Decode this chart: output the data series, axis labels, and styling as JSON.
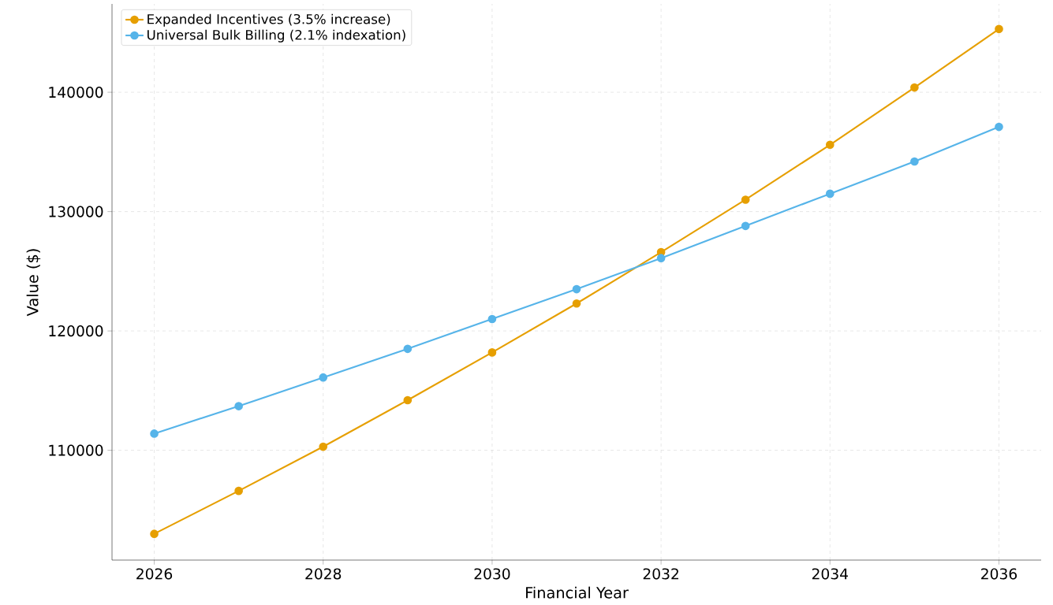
{
  "chart_data": {
    "type": "line",
    "xlabel": "Financial Year",
    "ylabel": "Value ($)",
    "x": [
      2026,
      2027,
      2028,
      2029,
      2030,
      2031,
      2032,
      2033,
      2034,
      2035,
      2036
    ],
    "series": [
      {
        "name": "Expanded Incentives (3.5% increase)",
        "color": "#e69f00",
        "values": [
          103000,
          106600,
          110300,
          114200,
          118200,
          122300,
          126600,
          131000,
          135600,
          140400,
          145300
        ]
      },
      {
        "name": "Universal Bulk Billing (2.1% indexation)",
        "color": "#56b4e9",
        "values": [
          111400,
          113700,
          116100,
          118500,
          121000,
          123500,
          126100,
          128800,
          131500,
          134200,
          137100
        ]
      }
    ],
    "xlim": [
      2025.5,
      2036.5
    ],
    "ylim": [
      100800,
      147400
    ],
    "xticks": [
      2026,
      2028,
      2030,
      2032,
      2034,
      2036
    ],
    "yticks": [
      110000,
      120000,
      130000,
      140000
    ],
    "grid": true,
    "legend": "top left",
    "marker": "circle",
    "line_style": "solid"
  }
}
